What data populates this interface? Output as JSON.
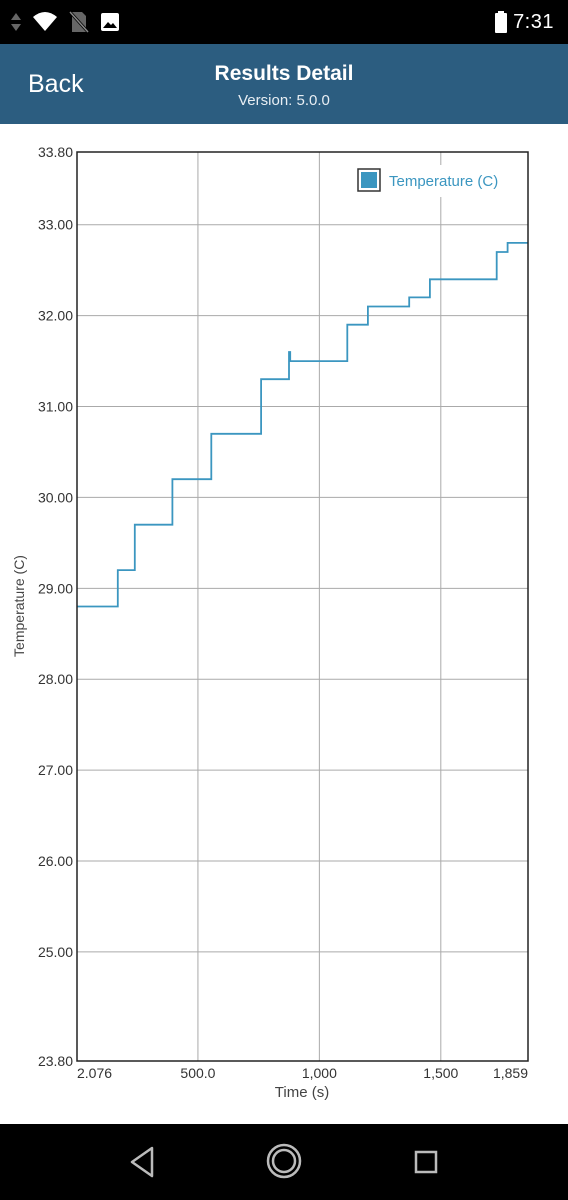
{
  "status_bar": {
    "time": "7:31",
    "icons": [
      "data-arrows-icon",
      "wifi-icon",
      "no-sim-icon",
      "image-notification-icon",
      "battery-icon"
    ]
  },
  "header": {
    "back_label": "Back",
    "title": "Results Detail",
    "subtitle": "Version: 5.0.0",
    "background_color": "#2c5d80"
  },
  "chart_data": {
    "type": "line",
    "xlabel": "Time (s)",
    "ylabel": "Temperature (C)",
    "xlim": [
      2.076,
      1859
    ],
    "ylim": [
      23.8,
      33.8
    ],
    "x_ticks": [
      {
        "value": 2.076,
        "label": "2.076"
      },
      {
        "value": 500,
        "label": "500.0"
      },
      {
        "value": 1000,
        "label": "1,000"
      },
      {
        "value": 1500,
        "label": "1,500"
      },
      {
        "value": 1859,
        "label": "1,859"
      }
    ],
    "y_ticks": [
      {
        "value": 23.8,
        "label": "23.80"
      },
      {
        "value": 25,
        "label": "25.00"
      },
      {
        "value": 26,
        "label": "26.00"
      },
      {
        "value": 27,
        "label": "27.00"
      },
      {
        "value": 28,
        "label": "28.00"
      },
      {
        "value": 29,
        "label": "29.00"
      },
      {
        "value": 30,
        "label": "30.00"
      },
      {
        "value": 31,
        "label": "31.00"
      },
      {
        "value": 32,
        "label": "32.00"
      },
      {
        "value": 33,
        "label": "33.00"
      },
      {
        "value": 33.8,
        "label": "33.80"
      }
    ],
    "grid": true,
    "legend_position": "top-right",
    "series": [
      {
        "name": "Temperature (C)",
        "color": "#3b96c0",
        "points": [
          [
            2.076,
            28.8
          ],
          [
            170,
            28.8
          ],
          [
            170,
            29.2
          ],
          [
            240,
            29.2
          ],
          [
            240,
            29.7
          ],
          [
            395,
            29.7
          ],
          [
            395,
            30.2
          ],
          [
            555,
            30.2
          ],
          [
            555,
            30.7
          ],
          [
            760,
            30.7
          ],
          [
            760,
            31.3
          ],
          [
            875,
            31.3
          ],
          [
            875,
            31.6
          ],
          [
            880,
            31.6
          ],
          [
            880,
            31.5
          ],
          [
            1115,
            31.5
          ],
          [
            1115,
            31.9
          ],
          [
            1200,
            31.9
          ],
          [
            1200,
            32.1
          ],
          [
            1370,
            32.1
          ],
          [
            1370,
            32.2
          ],
          [
            1455,
            32.2
          ],
          [
            1455,
            32.4
          ],
          [
            1730,
            32.4
          ],
          [
            1730,
            32.7
          ],
          [
            1775,
            32.7
          ],
          [
            1775,
            32.8
          ],
          [
            1859,
            32.8
          ]
        ]
      }
    ]
  }
}
